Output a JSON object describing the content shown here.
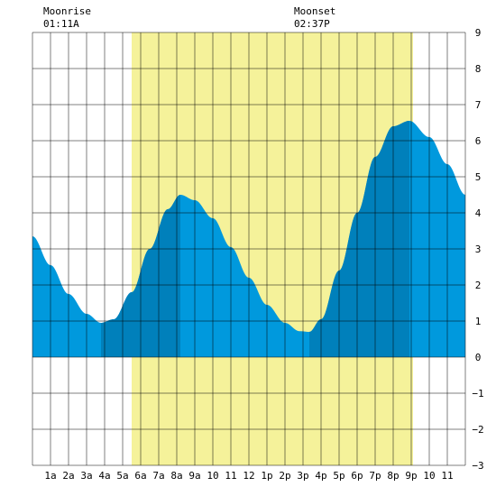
{
  "moonrise": {
    "label": "Moonrise",
    "time": "01:11A"
  },
  "moonset": {
    "label": "Moonset",
    "time": "02:37P"
  },
  "chart_data": {
    "type": "area",
    "title": "",
    "xlabel": "",
    "ylabel": "",
    "ylim": [
      -3,
      9
    ],
    "xlim": [
      0,
      24
    ],
    "x_tick_labels": [
      "1a",
      "2a",
      "3a",
      "4a",
      "5a",
      "6a",
      "7a",
      "8a",
      "9a",
      "10",
      "11",
      "12",
      "1p",
      "2p",
      "3p",
      "4p",
      "5p",
      "6p",
      "7p",
      "8p",
      "9p",
      "10",
      "11"
    ],
    "y_ticks": [
      9,
      8,
      7,
      6,
      5,
      4,
      3,
      2,
      1,
      0,
      -1,
      -2,
      -3
    ],
    "grid": true,
    "daylight_window_hours": [
      5.5,
      21.1
    ],
    "moonrise_hour": 1.18,
    "moonset_hour": 14.62,
    "colors": {
      "water_light": "#0099dd",
      "water_dark": "#0080bb",
      "daylight": "#f5f29a",
      "grid": "#000000",
      "background": "#ffffff"
    },
    "tide_extremes": [
      {
        "type": "low",
        "hour": 3.8,
        "height": 0.95
      },
      {
        "type": "high",
        "hour": 8.2,
        "height": 4.5
      },
      {
        "type": "low",
        "hour": 15.35,
        "height": 0.7
      },
      {
        "type": "high",
        "hour": 20.9,
        "height": 6.55
      }
    ],
    "series": [
      {
        "x": [
          0,
          1,
          2,
          3,
          3.8,
          4.5,
          5.5,
          6.5,
          7.5,
          8.2,
          9,
          10,
          11,
          12,
          13,
          14,
          14.8,
          15.35,
          16,
          17,
          18,
          19,
          20,
          20.9,
          22,
          23,
          24
        ],
        "values": [
          3.35,
          2.55,
          1.75,
          1.2,
          0.95,
          1.05,
          1.8,
          3.0,
          4.1,
          4.5,
          4.35,
          3.85,
          3.05,
          2.2,
          1.45,
          0.95,
          0.72,
          0.7,
          1.05,
          2.4,
          4.0,
          5.55,
          6.4,
          6.55,
          6.1,
          5.35,
          4.5
        ]
      }
    ],
    "dark_intervals": [
      [
        3.8,
        8.2
      ],
      [
        15.35,
        20.9
      ]
    ]
  }
}
